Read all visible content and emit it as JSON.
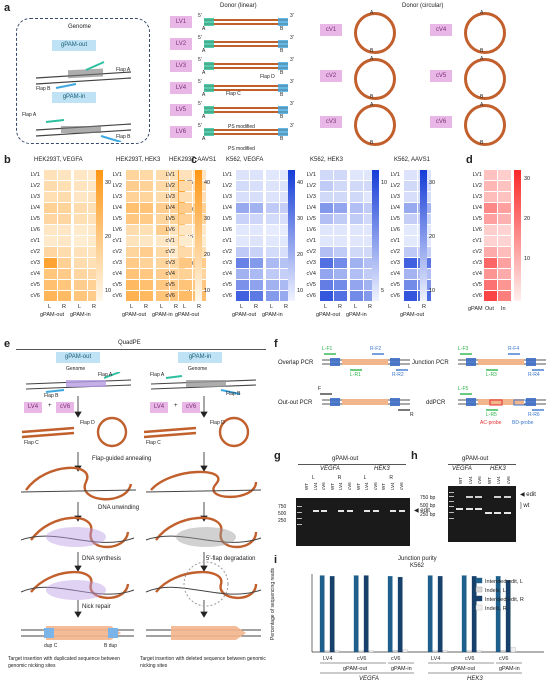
{
  "panels": {
    "a": "a",
    "b": "b",
    "c": "c",
    "d": "d",
    "e": "e",
    "f": "f",
    "g": "g",
    "h": "h",
    "i": "i"
  },
  "panel_a": {
    "genome_title": "Genome",
    "gpam_out": "gPAM-out",
    "gpam_in": "gPAM-in",
    "flap_a": "Flap A",
    "flap_b": "Flap B",
    "donor_linear_title": "Donor (linear)",
    "donor_circular_title": "Donor (circular)",
    "linear_labels": [
      "LV1",
      "LV2",
      "LV3",
      "LV4",
      "LV5",
      "LV6"
    ],
    "circular_labels": [
      "cV1",
      "cV2",
      "cV3",
      "cV4",
      "cV5",
      "cV6"
    ],
    "end5": "5'",
    "end3": "3'",
    "A": "A",
    "B": "B",
    "C": "C",
    "D": "D",
    "flap_c": "Flap C",
    "flap_d": "Flap D",
    "ps_modified": "PS modified"
  },
  "rows": [
    "LV1",
    "LV2",
    "LV3",
    "LV4",
    "LV5",
    "LV6",
    "cV1",
    "cV2",
    "cV3",
    "cV4",
    "cV5",
    "cV6"
  ],
  "lr": [
    "L",
    "R"
  ],
  "heatmaps": [
    {
      "id": "b1",
      "title": "HEK293T, VEGFA",
      "ticks": [
        "30",
        "20",
        "10"
      ],
      "groups": [
        "gPAM-out",
        "gPAM-in"
      ]
    },
    {
      "id": "b2",
      "title": "HEK293T, HEK3",
      "ticks": [
        "25",
        "20",
        "15",
        "10",
        "5"
      ],
      "groups": [
        "gPAM-out",
        "gPAM-in"
      ]
    },
    {
      "id": "b3",
      "title": "HEK293T, AAVS1",
      "ticks": [
        "40",
        "30",
        "20",
        "10"
      ],
      "groups": [
        "gPAM-out"
      ]
    },
    {
      "id": "c1",
      "title": "K562, VEGFA",
      "ticks": [
        "40",
        "30",
        "20",
        "10"
      ],
      "groups": [
        "gPAM-out",
        "gPAM-in"
      ]
    },
    {
      "id": "c2",
      "title": "K562, HEK3",
      "ticks": [
        "10",
        "5"
      ],
      "groups": [
        "gPAM-out",
        "gPAM-in"
      ]
    },
    {
      "id": "c3",
      "title": "K562, AAVS1",
      "ticks": [
        "30",
        "20",
        "10"
      ],
      "groups": [
        "gPAM-out"
      ]
    }
  ],
  "panel_d": {
    "ticks": [
      "30",
      "20",
      "10"
    ],
    "xlabels": [
      "gPAM",
      "Out",
      "In"
    ]
  },
  "panel_e": {
    "title": "QuadPE",
    "gpam_out": "gPAM-out",
    "gpam_in": "gPAM-in",
    "genome": "Genome",
    "lv4": "LV4",
    "cv6": "cV6",
    "plus": "+",
    "flap_a": "Flap A",
    "flap_b": "Flap B",
    "flap_c": "Flap C",
    "flap_d": "Flap D",
    "annealing": "Flap-guided annealing",
    "unwinding": "DNA unwinding",
    "synthesis": "DNA synthesis",
    "degradation": "5'-flap degradation",
    "nick_repair": "Nick repair",
    "dup_c": "dup C",
    "b_dup": "B dup",
    "caption_left": "Target insertion with duplicated sequence between genomic nicking sites",
    "caption_right": "Target insertion with deleted sequence between genomic nicking sites"
  },
  "panel_f": {
    "overlap": "Overlap PCR",
    "outout": "Out-out PCR",
    "junction": "Junction PCR",
    "ddpcr": "ddPCR",
    "primers": [
      "L-F1",
      "R-F2",
      "L-R1",
      "R-R2",
      "F",
      "R",
      "L-F3",
      "R-F4",
      "L-R3",
      "R-R4",
      "L-F5",
      "L-R5",
      "R-R6"
    ],
    "ac_probe": "AC-probe",
    "bd_probe": "BD-probe"
  },
  "panel_g": {
    "title": "gPAM-out",
    "sites": [
      "VEGFA",
      "HEK3"
    ],
    "lanes": [
      "WT",
      "LV4",
      "cV6",
      "WT",
      "LV4",
      "cV6",
      "WT",
      "LV4",
      "cV6",
      "WT",
      "LV4",
      "cV6"
    ],
    "ladder": [
      "750",
      "500",
      "250"
    ],
    "edit": "edit"
  },
  "panel_h": {
    "title": "gPAM-out",
    "sites": [
      "VEGFA",
      "HEK3"
    ],
    "lanes": [
      "WT",
      "LV4",
      "cV6",
      "WT",
      "LV4",
      "cV6"
    ],
    "ladder": [
      "750 bp",
      "500 bp",
      "250 bp"
    ],
    "edit": "edit",
    "wt": "wt"
  },
  "panel_i": {
    "title": "Junction purity",
    "subtitle": "K562",
    "ylabel": "Percentage of sequencing reads",
    "legend": [
      "Intended edit, L",
      "Indels, L",
      "Intended edit, R",
      "Indels, R"
    ],
    "donors": [
      "LV4",
      "cV6",
      "cV6",
      "LV4",
      "cV6",
      "cV6"
    ],
    "groups": [
      "gPAM-out",
      "gPAM-in",
      "gPAM-out",
      "gPAM-in"
    ],
    "sites": [
      "VEGFA",
      "HEK3"
    ]
  },
  "colors": {
    "orange": "#f0a236",
    "blue": "#1f4fd6",
    "red": "#e0302d",
    "pink": "#e9b7e6",
    "cyan": "#bfe3f4",
    "donor": "#c2602d"
  },
  "chart_data": [
    {
      "type": "heatmap",
      "title": "HEK293T, VEGFA",
      "rows": [
        "LV1",
        "LV2",
        "LV3",
        "LV4",
        "LV5",
        "LV6",
        "cV1",
        "cV2",
        "cV3",
        "cV4",
        "cV5",
        "cV6"
      ],
      "columns": [
        "gPAM-out L",
        "gPAM-out R",
        "gPAM-in L",
        "gPAM-in R"
      ],
      "values": [
        [
          8,
          7,
          6,
          5
        ],
        [
          10,
          9,
          7,
          6
        ],
        [
          9,
          10,
          6,
          7
        ],
        [
          14,
          13,
          10,
          9
        ],
        [
          12,
          12,
          9,
          8
        ],
        [
          6,
          6,
          5,
          5
        ],
        [
          5,
          6,
          4,
          5
        ],
        [
          12,
          10,
          8,
          7
        ],
        [
          30,
          14,
          10,
          9
        ],
        [
          18,
          16,
          12,
          11
        ],
        [
          20,
          18,
          15,
          14
        ],
        [
          24,
          22,
          18,
          16
        ]
      ],
      "zlim": [
        0,
        35
      ]
    },
    {
      "type": "heatmap",
      "title": "HEK293T, HEK3",
      "rows": [
        "LV1",
        "LV2",
        "LV3",
        "LV4",
        "LV5",
        "LV6",
        "cV1",
        "cV2",
        "cV3",
        "cV4",
        "cV5",
        "cV6"
      ],
      "columns": [
        "gPAM-out L",
        "gPAM-out R",
        "gPAM-in L",
        "gPAM-in R"
      ],
      "values": [
        [
          10,
          9,
          8,
          7
        ],
        [
          12,
          11,
          9,
          9
        ],
        [
          11,
          10,
          8,
          8
        ],
        [
          16,
          15,
          12,
          11
        ],
        [
          14,
          13,
          10,
          10
        ],
        [
          8,
          7,
          12,
          6
        ],
        [
          6,
          5,
          5,
          5
        ],
        [
          10,
          12,
          9,
          4
        ],
        [
          13,
          11,
          10,
          9
        ],
        [
          15,
          14,
          12,
          11
        ],
        [
          18,
          16,
          14,
          12
        ],
        [
          20,
          18,
          15,
          14
        ]
      ],
      "zlim": [
        0,
        28
      ]
    },
    {
      "type": "heatmap",
      "title": "HEK293T, AAVS1",
      "rows": [
        "LV1",
        "LV2",
        "LV3",
        "LV4",
        "LV5",
        "LV6",
        "cV1",
        "cV2",
        "cV3",
        "cV4",
        "cV5",
        "cV6"
      ],
      "columns": [
        "gPAM-out L",
        "gPAM-out R"
      ],
      "values": [
        [
          10,
          8
        ],
        [
          14,
          12
        ],
        [
          12,
          11
        ],
        [
          20,
          18
        ],
        [
          18,
          16
        ],
        [
          8,
          7
        ],
        [
          6,
          6
        ],
        [
          14,
          12
        ],
        [
          22,
          20
        ],
        [
          18,
          16
        ],
        [
          24,
          22
        ],
        [
          28,
          26
        ]
      ],
      "zlim": [
        0,
        45
      ]
    },
    {
      "type": "heatmap",
      "title": "K562, VEGFA",
      "rows": [
        "LV1",
        "LV2",
        "LV3",
        "LV4",
        "LV5",
        "LV6",
        "cV1",
        "cV2",
        "cV3",
        "cV4",
        "cV5",
        "cV6"
      ],
      "columns": [
        "gPAM-out L",
        "gPAM-out R",
        "gPAM-in L",
        "gPAM-in R"
      ],
      "values": [
        [
          4,
          4,
          3,
          3
        ],
        [
          6,
          5,
          4,
          4
        ],
        [
          5,
          5,
          4,
          4
        ],
        [
          18,
          16,
          10,
          9
        ],
        [
          8,
          7,
          6,
          5
        ],
        [
          3,
          3,
          2,
          2
        ],
        [
          3,
          4,
          3,
          3
        ],
        [
          10,
          8,
          6,
          5
        ],
        [
          28,
          22,
          14,
          12
        ],
        [
          16,
          14,
          10,
          9
        ],
        [
          24,
          20,
          16,
          14
        ],
        [
          36,
          30,
          22,
          18
        ]
      ],
      "zlim": [
        0,
        45
      ]
    },
    {
      "type": "heatmap",
      "title": "K562, HEK3",
      "rows": [
        "LV1",
        "LV2",
        "LV3",
        "LV4",
        "LV5",
        "LV6",
        "cV1",
        "cV2",
        "cV3",
        "cV4",
        "cV5",
        "cV6"
      ],
      "columns": [
        "gPAM-out L",
        "gPAM-out R",
        "gPAM-in L",
        "gPAM-in R"
      ],
      "values": [
        [
          2,
          2,
          1,
          1
        ],
        [
          3,
          2,
          2,
          2
        ],
        [
          2,
          2,
          2,
          1
        ],
        [
          7,
          6,
          4,
          3
        ],
        [
          4,
          3,
          3,
          2
        ],
        [
          1,
          1,
          1,
          1
        ],
        [
          1,
          1,
          1,
          1
        ],
        [
          4,
          3,
          2,
          2
        ],
        [
          10,
          8,
          5,
          4
        ],
        [
          6,
          5,
          4,
          3
        ],
        [
          9,
          8,
          6,
          5
        ],
        [
          12,
          10,
          8,
          7
        ]
      ],
      "zlim": [
        0,
        14
      ]
    },
    {
      "type": "heatmap",
      "title": "K562, AAVS1",
      "rows": [
        "LV1",
        "LV2",
        "LV3",
        "LV4",
        "LV5",
        "LV6",
        "cV1",
        "cV2",
        "cV3",
        "cV4",
        "cV5",
        "cV6"
      ],
      "columns": [
        "gPAM-out L",
        "gPAM-out R"
      ],
      "values": [
        [
          3,
          3
        ],
        [
          5,
          4
        ],
        [
          4,
          4
        ],
        [
          14,
          12
        ],
        [
          7,
          6
        ],
        [
          2,
          2
        ],
        [
          2,
          2
        ],
        [
          8,
          7
        ],
        [
          28,
          24
        ],
        [
          12,
          10
        ],
        [
          20,
          18
        ],
        [
          30,
          26
        ]
      ],
      "zlim": [
        0,
        35
      ]
    },
    {
      "type": "heatmap",
      "title": "",
      "rows": [
        "LV1",
        "LV2",
        "LV3",
        "LV4",
        "LV5",
        "LV6",
        "cV1",
        "cV2",
        "cV3",
        "cV4",
        "cV5",
        "cV6"
      ],
      "columns": [
        "Out",
        "In"
      ],
      "values": [
        [
          8,
          6
        ],
        [
          10,
          8
        ],
        [
          9,
          8
        ],
        [
          18,
          14
        ],
        [
          14,
          11
        ],
        [
          6,
          5
        ],
        [
          5,
          5
        ],
        [
          12,
          9
        ],
        [
          24,
          14
        ],
        [
          16,
          12
        ],
        [
          22,
          16
        ],
        [
          30,
          20
        ]
      ],
      "zlim": [
        0,
        35
      ]
    },
    {
      "type": "bar",
      "title": "Junction purity",
      "subtitle": "K562",
      "ylabel": "Percentage of sequencing reads",
      "categories": [
        "VEGFA gPAM-out LV4",
        "VEGFA gPAM-out cV6",
        "VEGFA gPAM-in cV6",
        "HEK3 gPAM-out LV4",
        "HEK3 gPAM-out cV6",
        "HEK3 gPAM-in cV6"
      ],
      "series": [
        {
          "name": "Intended edit, L",
          "values": [
            98,
            98,
            97,
            98,
            98,
            97
          ]
        },
        {
          "name": "Indels, L",
          "values": [
            1.5,
            1.5,
            2,
            1.5,
            1.5,
            2
          ]
        },
        {
          "name": "Intended edit, R",
          "values": [
            97,
            98,
            96,
            97,
            97,
            92
          ]
        },
        {
          "name": "Indels, R",
          "values": [
            2,
            1.5,
            3,
            2,
            2,
            6
          ]
        }
      ],
      "ylim": [
        0,
        100
      ],
      "legend": "top-right"
    }
  ]
}
